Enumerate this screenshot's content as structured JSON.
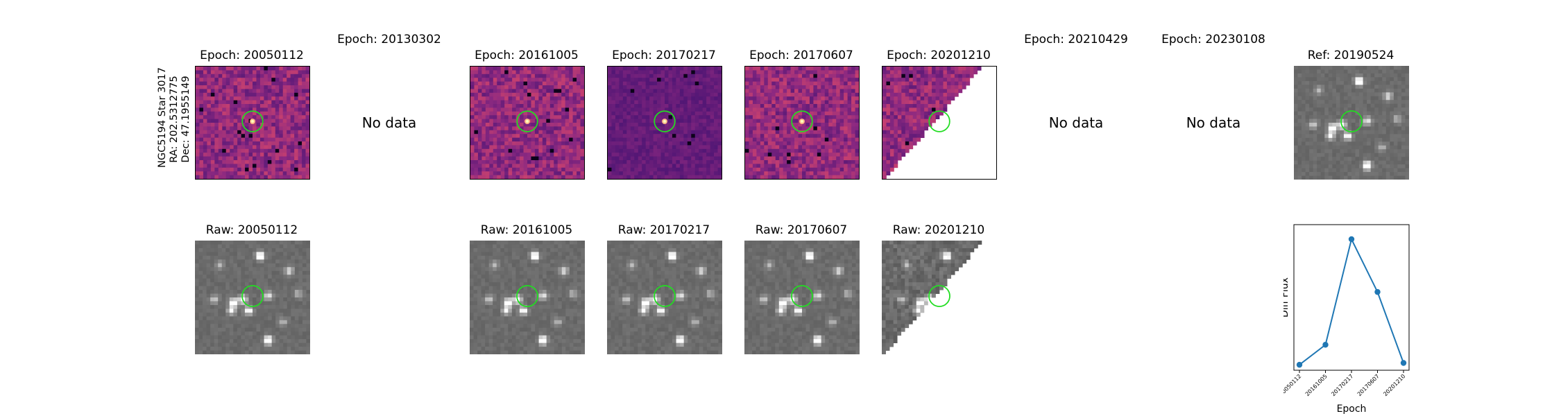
{
  "target": {
    "name": "NGC5194 Star 3017",
    "ra": "RA: 202.5312775",
    "dec": "Dec: 47.1955149"
  },
  "diff_titles": [
    "Epoch: 20050112",
    "Epoch: 20130302",
    "Epoch: 20161005",
    "Epoch: 20170217",
    "Epoch: 20170607",
    "Epoch: 20201210",
    "Epoch: 20210429",
    "Epoch: 20230108"
  ],
  "ref_title": "Ref: 20190524",
  "no_data_text": "No data",
  "raw_titles": [
    "Raw: 20050112",
    "Raw: 20161005",
    "Raw: 20170217",
    "Raw: 20170607",
    "Raw: 20201210"
  ],
  "colors": {
    "aperture": "#22dd22",
    "series": "#1f77b4",
    "diff_cmap": "magma",
    "raw_cmap": "gray"
  },
  "chart_data": {
    "type": "line",
    "title": "",
    "xlabel": "Epoch",
    "ylabel": "Diff Flux",
    "categories": [
      "20050112",
      "20161005",
      "20170217",
      "20170607",
      "20201210"
    ],
    "values": [
      0.03,
      0.14,
      0.72,
      0.43,
      0.04
    ],
    "ylim": [
      0,
      0.8
    ],
    "yticks_shown": false,
    "grid": false,
    "markers": true
  }
}
